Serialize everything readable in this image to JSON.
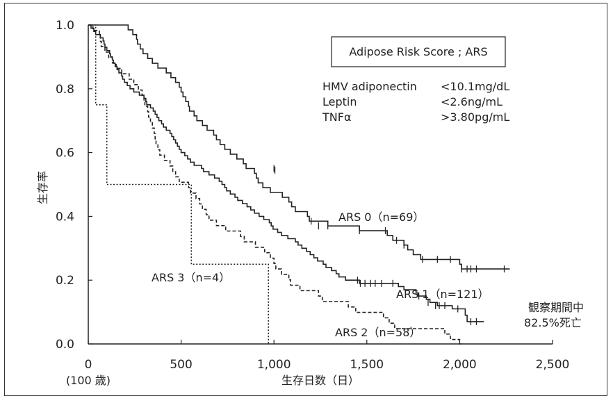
{
  "chart_data": {
    "type": "line",
    "subtype": "kaplan-meier",
    "title": "",
    "xlabel": "生存日数（日）",
    "ylabel": "生存率",
    "xlim": [
      0,
      2500
    ],
    "ylim": [
      0,
      1.0
    ],
    "x_ticks": [
      {
        "value": 0,
        "label": "0"
      },
      {
        "value": 500,
        "label": "500"
      },
      {
        "value": 1000,
        "label": "1,000"
      },
      {
        "value": 1500,
        "label": "1,500"
      },
      {
        "value": 2000,
        "label": "2,000"
      },
      {
        "value": 2500,
        "label": "2,500"
      }
    ],
    "x_origin_note": "(100 歳)",
    "y_ticks": [
      {
        "value": 0.0,
        "label": "0.0"
      },
      {
        "value": 0.2,
        "label": "0.2"
      },
      {
        "value": 0.4,
        "label": "0.4"
      },
      {
        "value": 0.6,
        "label": "0.6"
      },
      {
        "value": 0.8,
        "label": "0.8"
      },
      {
        "value": 1.0,
        "label": "1.0"
      }
    ],
    "grid": false,
    "legend": {
      "title": "Adipose Risk Score ; ARS",
      "rows": [
        {
          "name": "HMV adiponectin",
          "value": "<10.1mg/dL"
        },
        {
          "name": "Leptin",
          "value": "<2.6ng/mL"
        },
        {
          "name": "TNFα",
          "value": ">3.80pg/mL"
        }
      ]
    },
    "annotation": {
      "line1": "観察期間中",
      "line2": "82.5%死亡"
    },
    "series": [
      {
        "name": "ARS 0（n=69）",
        "style": "solid",
        "points": [
          [
            0,
            1.0
          ],
          [
            205,
            1.0
          ],
          [
            215,
            0.985
          ],
          [
            240,
            0.97
          ],
          [
            260,
            0.955
          ],
          [
            265,
            0.94
          ],
          [
            280,
            0.925
          ],
          [
            295,
            0.91
          ],
          [
            320,
            0.895
          ],
          [
            345,
            0.88
          ],
          [
            375,
            0.865
          ],
          [
            420,
            0.85
          ],
          [
            445,
            0.835
          ],
          [
            470,
            0.82
          ],
          [
            490,
            0.805
          ],
          [
            500,
            0.79
          ],
          [
            510,
            0.775
          ],
          [
            525,
            0.76
          ],
          [
            540,
            0.745
          ],
          [
            545,
            0.73
          ],
          [
            570,
            0.715
          ],
          [
            585,
            0.7
          ],
          [
            615,
            0.685
          ],
          [
            640,
            0.67
          ],
          [
            675,
            0.655
          ],
          [
            690,
            0.64
          ],
          [
            710,
            0.625
          ],
          [
            735,
            0.61
          ],
          [
            765,
            0.595
          ],
          [
            800,
            0.58
          ],
          [
            835,
            0.565
          ],
          [
            850,
            0.55
          ],
          [
            895,
            0.535
          ],
          [
            905,
            0.52
          ],
          [
            915,
            0.505
          ],
          [
            940,
            0.49
          ],
          [
            980,
            0.475
          ],
          [
            1045,
            0.46
          ],
          [
            1080,
            0.445
          ],
          [
            1095,
            0.43
          ],
          [
            1115,
            0.415
          ],
          [
            1180,
            0.4
          ],
          [
            1190,
            0.385
          ],
          [
            1290,
            0.37
          ],
          [
            1460,
            0.355
          ],
          [
            1610,
            0.34
          ],
          [
            1640,
            0.325
          ],
          [
            1700,
            0.31
          ],
          [
            1720,
            0.295
          ],
          [
            1750,
            0.28
          ],
          [
            1790,
            0.265
          ],
          [
            2000,
            0.25
          ],
          [
            2010,
            0.235
          ],
          [
            2270,
            0.235
          ]
        ],
        "censors": [
          [
            1000,
            0.55
          ],
          [
            1005,
            0.545
          ],
          [
            1200,
            0.385
          ],
          [
            1240,
            0.37
          ],
          [
            1290,
            0.37
          ],
          [
            1460,
            0.355
          ],
          [
            1600,
            0.355
          ],
          [
            1660,
            0.325
          ],
          [
            1700,
            0.31
          ],
          [
            1800,
            0.265
          ],
          [
            1880,
            0.265
          ],
          [
            1950,
            0.265
          ],
          [
            2010,
            0.235
          ],
          [
            2040,
            0.235
          ],
          [
            2060,
            0.235
          ],
          [
            2090,
            0.235
          ],
          [
            2240,
            0.235
          ]
        ],
        "label": "ARS 0（n=69）"
      },
      {
        "name": "ARS 1（n=121）",
        "style": "solid",
        "points": [
          [
            0,
            1.0
          ],
          [
            15,
            0.99
          ],
          [
            30,
            0.98
          ],
          [
            40,
            0.97
          ],
          [
            65,
            0.96
          ],
          [
            80,
            0.95
          ],
          [
            85,
            0.94
          ],
          [
            90,
            0.93
          ],
          [
            100,
            0.92
          ],
          [
            115,
            0.91
          ],
          [
            120,
            0.9
          ],
          [
            130,
            0.89
          ],
          [
            135,
            0.88
          ],
          [
            145,
            0.87
          ],
          [
            155,
            0.86
          ],
          [
            165,
            0.85
          ],
          [
            180,
            0.84
          ],
          [
            185,
            0.83
          ],
          [
            195,
            0.82
          ],
          [
            210,
            0.81
          ],
          [
            225,
            0.8
          ],
          [
            245,
            0.79
          ],
          [
            275,
            0.78
          ],
          [
            300,
            0.77
          ],
          [
            310,
            0.76
          ],
          [
            315,
            0.75
          ],
          [
            335,
            0.74
          ],
          [
            350,
            0.73
          ],
          [
            360,
            0.72
          ],
          [
            370,
            0.71
          ],
          [
            380,
            0.7
          ],
          [
            395,
            0.69
          ],
          [
            405,
            0.68
          ],
          [
            420,
            0.67
          ],
          [
            440,
            0.66
          ],
          [
            450,
            0.65
          ],
          [
            460,
            0.64
          ],
          [
            470,
            0.63
          ],
          [
            480,
            0.62
          ],
          [
            490,
            0.61
          ],
          [
            500,
            0.6
          ],
          [
            520,
            0.59
          ],
          [
            535,
            0.58
          ],
          [
            550,
            0.57
          ],
          [
            570,
            0.56
          ],
          [
            610,
            0.55
          ],
          [
            620,
            0.54
          ],
          [
            650,
            0.53
          ],
          [
            680,
            0.52
          ],
          [
            705,
            0.51
          ],
          [
            720,
            0.5
          ],
          [
            735,
            0.49
          ],
          [
            745,
            0.48
          ],
          [
            765,
            0.47
          ],
          [
            790,
            0.46
          ],
          [
            805,
            0.45
          ],
          [
            830,
            0.44
          ],
          [
            855,
            0.43
          ],
          [
            875,
            0.42
          ],
          [
            895,
            0.41
          ],
          [
            920,
            0.4
          ],
          [
            945,
            0.39
          ],
          [
            975,
            0.38
          ],
          [
            985,
            0.37
          ],
          [
            995,
            0.36
          ],
          [
            1020,
            0.35
          ],
          [
            1040,
            0.34
          ],
          [
            1075,
            0.33
          ],
          [
            1115,
            0.32
          ],
          [
            1130,
            0.31
          ],
          [
            1150,
            0.3
          ],
          [
            1175,
            0.29
          ],
          [
            1195,
            0.28
          ],
          [
            1215,
            0.27
          ],
          [
            1235,
            0.26
          ],
          [
            1265,
            0.25
          ],
          [
            1280,
            0.24
          ],
          [
            1310,
            0.23
          ],
          [
            1335,
            0.22
          ],
          [
            1350,
            0.21
          ],
          [
            1385,
            0.2
          ],
          [
            1460,
            0.19
          ],
          [
            1670,
            0.18
          ],
          [
            1700,
            0.17
          ],
          [
            1765,
            0.16
          ],
          [
            1775,
            0.15
          ],
          [
            1820,
            0.14
          ],
          [
            1840,
            0.13
          ],
          [
            1880,
            0.12
          ],
          [
            1960,
            0.11
          ],
          [
            2030,
            0.09
          ],
          [
            2040,
            0.07
          ],
          [
            2130,
            0.07
          ]
        ],
        "censors": [
          [
            1450,
            0.2
          ],
          [
            1465,
            0.19
          ],
          [
            1490,
            0.19
          ],
          [
            1520,
            0.19
          ],
          [
            1545,
            0.19
          ],
          [
            1580,
            0.19
          ],
          [
            1640,
            0.19
          ],
          [
            1780,
            0.15
          ],
          [
            1830,
            0.13
          ],
          [
            1870,
            0.12
          ],
          [
            1890,
            0.12
          ],
          [
            1920,
            0.12
          ],
          [
            1990,
            0.11
          ],
          [
            2060,
            0.07
          ],
          [
            2090,
            0.07
          ]
        ],
        "label": "ARS 1（n=121）"
      },
      {
        "name": "ARS 2（n=58）",
        "style": "dashed",
        "points": [
          [
            0,
            1.0
          ],
          [
            25,
            0.983
          ],
          [
            60,
            0.966
          ],
          [
            65,
            0.949
          ],
          [
            70,
            0.932
          ],
          [
            90,
            0.915
          ],
          [
            110,
            0.898
          ],
          [
            130,
            0.881
          ],
          [
            150,
            0.864
          ],
          [
            180,
            0.847
          ],
          [
            220,
            0.83
          ],
          [
            245,
            0.813
          ],
          [
            270,
            0.796
          ],
          [
            290,
            0.779
          ],
          [
            300,
            0.762
          ],
          [
            305,
            0.745
          ],
          [
            320,
            0.728
          ],
          [
            325,
            0.711
          ],
          [
            335,
            0.694
          ],
          [
            345,
            0.677
          ],
          [
            355,
            0.66
          ],
          [
            360,
            0.643
          ],
          [
            365,
            0.626
          ],
          [
            375,
            0.609
          ],
          [
            385,
            0.592
          ],
          [
            410,
            0.575
          ],
          [
            440,
            0.558
          ],
          [
            455,
            0.541
          ],
          [
            470,
            0.524
          ],
          [
            490,
            0.507
          ],
          [
            540,
            0.49
          ],
          [
            550,
            0.473
          ],
          [
            580,
            0.456
          ],
          [
            600,
            0.439
          ],
          [
            615,
            0.422
          ],
          [
            635,
            0.405
          ],
          [
            650,
            0.388
          ],
          [
            690,
            0.371
          ],
          [
            740,
            0.354
          ],
          [
            820,
            0.337
          ],
          [
            840,
            0.32
          ],
          [
            900,
            0.303
          ],
          [
            950,
            0.286
          ],
          [
            980,
            0.269
          ],
          [
            1000,
            0.252
          ],
          [
            1010,
            0.235
          ],
          [
            1040,
            0.218
          ],
          [
            1080,
            0.201
          ],
          [
            1090,
            0.184
          ],
          [
            1140,
            0.167
          ],
          [
            1240,
            0.15
          ],
          [
            1260,
            0.133
          ],
          [
            1400,
            0.116
          ],
          [
            1440,
            0.099
          ],
          [
            1590,
            0.082
          ],
          [
            1620,
            0.065
          ],
          [
            1650,
            0.048
          ],
          [
            1920,
            0.031
          ],
          [
            1950,
            0.014
          ],
          [
            2000,
            0.0
          ],
          [
            2010,
            0.0
          ]
        ],
        "censors": [],
        "label": "ARS 2（n=58）"
      },
      {
        "name": "ARS 3（n=4）",
        "style": "dotted",
        "points": [
          [
            0,
            1.0
          ],
          [
            40,
            1.0
          ],
          [
            40,
            0.75
          ],
          [
            100,
            0.75
          ],
          [
            100,
            0.5
          ],
          [
            555,
            0.5
          ],
          [
            555,
            0.25
          ],
          [
            970,
            0.25
          ],
          [
            970,
            0.0
          ]
        ],
        "censors": [],
        "label": "ARS 3（n=4）"
      }
    ]
  }
}
